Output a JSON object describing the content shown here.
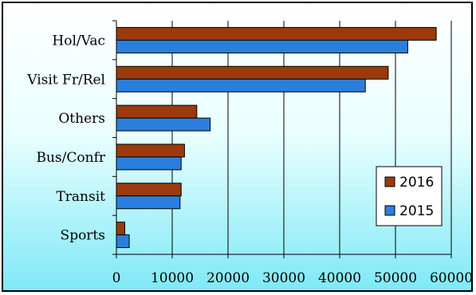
{
  "chart_data": {
    "type": "bar",
    "orientation": "horizontal",
    "categories": [
      "Hol/Vac",
      "Visit Fr/Rel",
      "Others",
      "Bus/Confr",
      "Transit",
      "Sports"
    ],
    "series": [
      {
        "name": "2016",
        "color": "#9b3a0c",
        "values": [
          57300,
          48700,
          14400,
          12200,
          11600,
          1500
        ]
      },
      {
        "name": "2015",
        "color": "#2b7fdc",
        "values": [
          52200,
          44600,
          16800,
          11600,
          11400,
          2300
        ]
      }
    ],
    "xticks": [
      "0",
      "10000",
      "20000",
      "30000",
      "40000",
      "50000",
      "60000"
    ],
    "xlim": [
      0,
      60000
    ],
    "grid": "vertical",
    "legend": "right"
  }
}
